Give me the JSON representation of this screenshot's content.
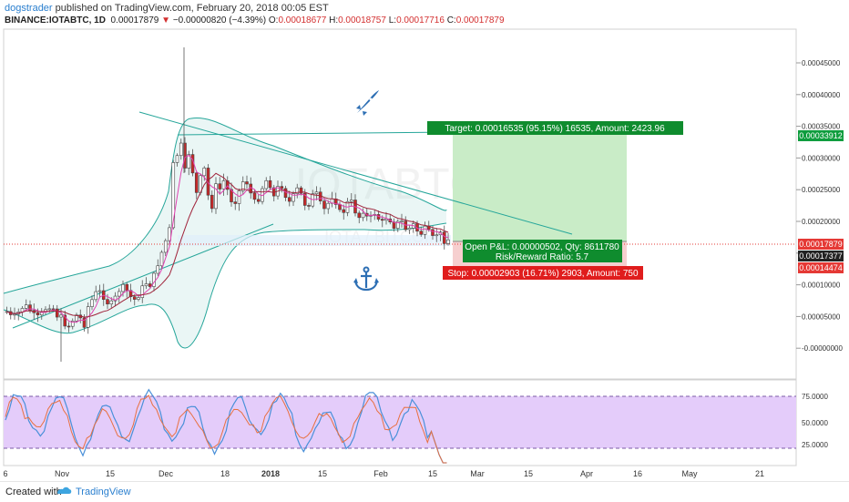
{
  "header": {
    "user": "dogstrader",
    "published": " published on TradingView.com, February 20, 2018 00:05 EST",
    "symbol": "BINANCE:IOTABTC, 1D",
    "last": "0.00017879",
    "change": "−0.00000820 (−4.39%)",
    "o_label": "O:",
    "o": "0.00018677",
    "h_label": "H:",
    "h": "0.00018757",
    "l_label": "L:",
    "l": "0.00017716",
    "c_label": "C:",
    "c": "0.00017879"
  },
  "watermark": {
    "line1": "IOTABTC, 1D",
    "line2": "IOTA / BITCOIN"
  },
  "price_axis": [
    "0.00045000",
    "0.00040000",
    "0.00035000",
    "0.00030000",
    "0.00025000",
    "0.00020000",
    "0.00015000",
    "0.00010000",
    "0.00005000",
    "-0.00000000"
  ],
  "price_tags": {
    "target": {
      "text": "0.00033912",
      "color": "#0f9d3e"
    },
    "last": {
      "text": "0.00017879",
      "color": "#e53935"
    },
    "entry": {
      "text": "0.00017377",
      "color": "#222222"
    },
    "stop": {
      "text": "0.00014474",
      "color": "#e53935"
    }
  },
  "rsi_axis": [
    "75.0000",
    "50.0000",
    "25.0000"
  ],
  "time_axis": [
    "6",
    "Nov",
    "15",
    "Dec",
    "18",
    "2018",
    "15",
    "Feb",
    "15",
    "Mar",
    "15",
    "Apr",
    "16",
    "May",
    "21"
  ],
  "position": {
    "target_label": "Target: 0.00016535 (95.15%) 16535, Amount: 2423.96",
    "pnl_label": "Open P&L: 0.00000502, Qty: 8611780",
    "rr_label": "Risk/Reward Ratio: 5.7",
    "stop_label": "Stop: 0.00002903 (16.71%) 2903, Amount: 750"
  },
  "icons": {
    "rocket": "rocket-icon",
    "anchor": "anchor-icon"
  },
  "colors": {
    "up": "#ffffff",
    "down": "#c62828",
    "rsi_band": "#e4ccfa",
    "green_zone": "#c9ecc7",
    "red_zone": "#f6cfcf"
  },
  "footer": {
    "created": "Created with",
    "brand": "TradingView"
  }
}
